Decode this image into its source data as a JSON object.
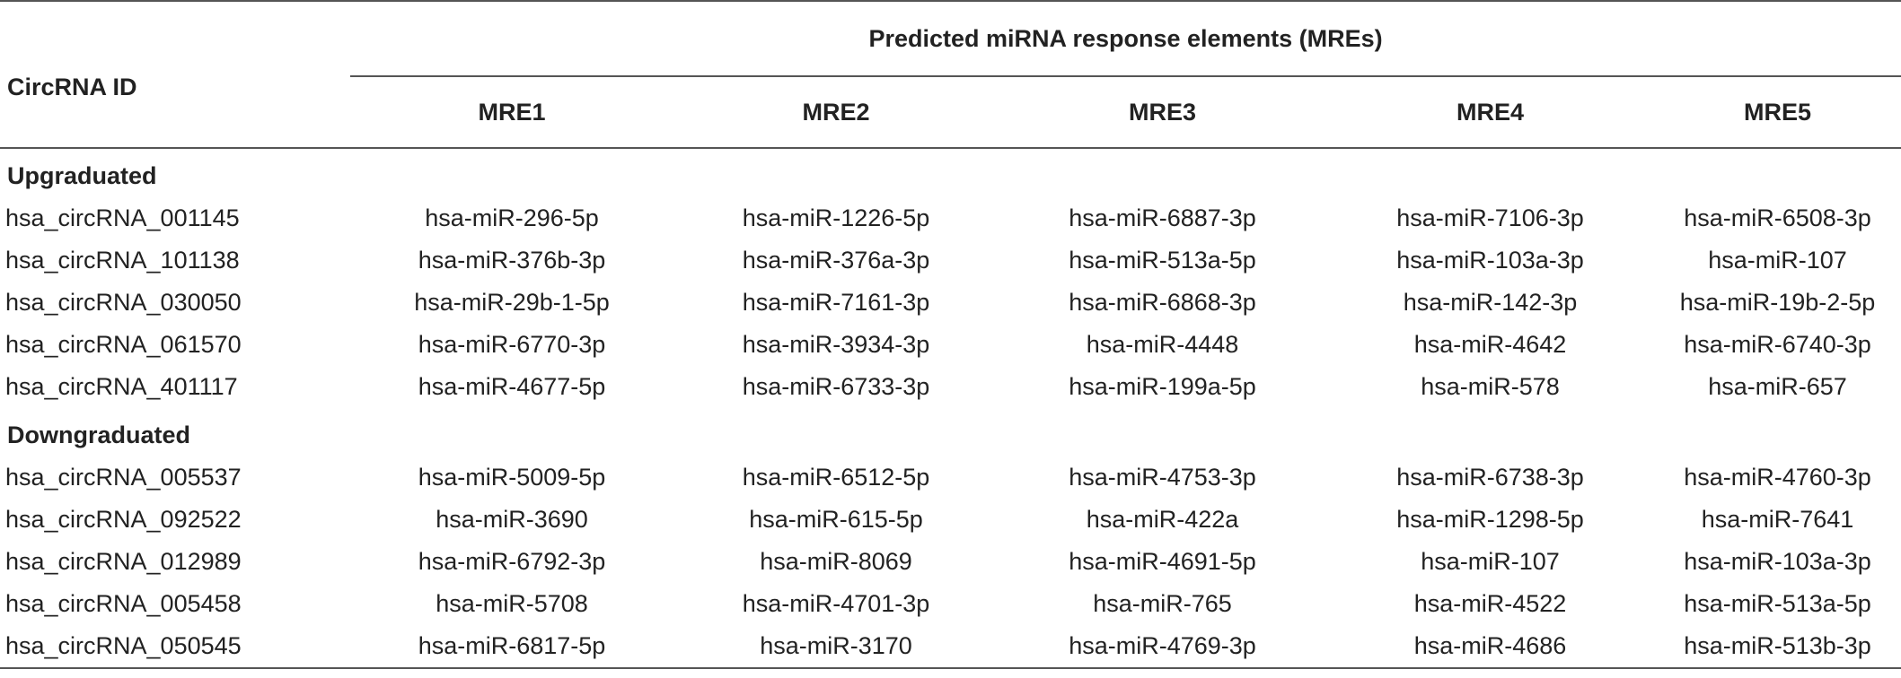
{
  "table": {
    "id_header": "CircRNA ID",
    "group_header": "Predicted miRNA response elements (MREs)",
    "columns": [
      "MRE1",
      "MRE2",
      "MRE3",
      "MRE4",
      "MRE5"
    ],
    "sections": [
      {
        "label": "Upgraduated",
        "rows": [
          {
            "id": "hsa_circRNA_001145",
            "mres": [
              "hsa-miR-296-5p",
              "hsa-miR-1226-5p",
              "hsa-miR-6887-3p",
              "hsa-miR-7106-3p",
              "hsa-miR-6508-3p"
            ]
          },
          {
            "id": "hsa_circRNA_101138",
            "mres": [
              "hsa-miR-376b-3p",
              "hsa-miR-376a-3p",
              "hsa-miR-513a-5p",
              "hsa-miR-103a-3p",
              "hsa-miR-107"
            ]
          },
          {
            "id": "hsa_circRNA_030050",
            "mres": [
              "hsa-miR-29b-1-5p",
              "hsa-miR-7161-3p",
              "hsa-miR-6868-3p",
              "hsa-miR-142-3p",
              "hsa-miR-19b-2-5p"
            ]
          },
          {
            "id": "hsa_circRNA_061570",
            "mres": [
              "hsa-miR-6770-3p",
              "hsa-miR-3934-3p",
              "hsa-miR-4448",
              "hsa-miR-4642",
              "hsa-miR-6740-3p"
            ]
          },
          {
            "id": "hsa_circRNA_401117",
            "mres": [
              "hsa-miR-4677-5p",
              "hsa-miR-6733-3p",
              "hsa-miR-199a-5p",
              "hsa-miR-578",
              "hsa-miR-657"
            ]
          }
        ]
      },
      {
        "label": "Downgraduated",
        "rows": [
          {
            "id": "hsa_circRNA_005537",
            "mres": [
              "hsa-miR-5009-5p",
              "hsa-miR-6512-5p",
              "hsa-miR-4753-3p",
              "hsa-miR-6738-3p",
              "hsa-miR-4760-3p"
            ]
          },
          {
            "id": "hsa_circRNA_092522",
            "mres": [
              "hsa-miR-3690",
              "hsa-miR-615-5p",
              "hsa-miR-422a",
              "hsa-miR-1298-5p",
              "hsa-miR-7641"
            ]
          },
          {
            "id": "hsa_circRNA_012989",
            "mres": [
              "hsa-miR-6792-3p",
              "hsa-miR-8069",
              "hsa-miR-4691-5p",
              "hsa-miR-107",
              "hsa-miR-103a-3p"
            ]
          },
          {
            "id": "hsa_circRNA_005458",
            "mres": [
              "hsa-miR-5708",
              "hsa-miR-4701-3p",
              "hsa-miR-765",
              "hsa-miR-4522",
              "hsa-miR-513a-5p"
            ]
          },
          {
            "id": "hsa_circRNA_050545",
            "mres": [
              "hsa-miR-6817-5p",
              "hsa-miR-3170",
              "hsa-miR-4769-3p",
              "hsa-miR-4686",
              "hsa-miR-513b-3p"
            ]
          }
        ]
      }
    ]
  }
}
